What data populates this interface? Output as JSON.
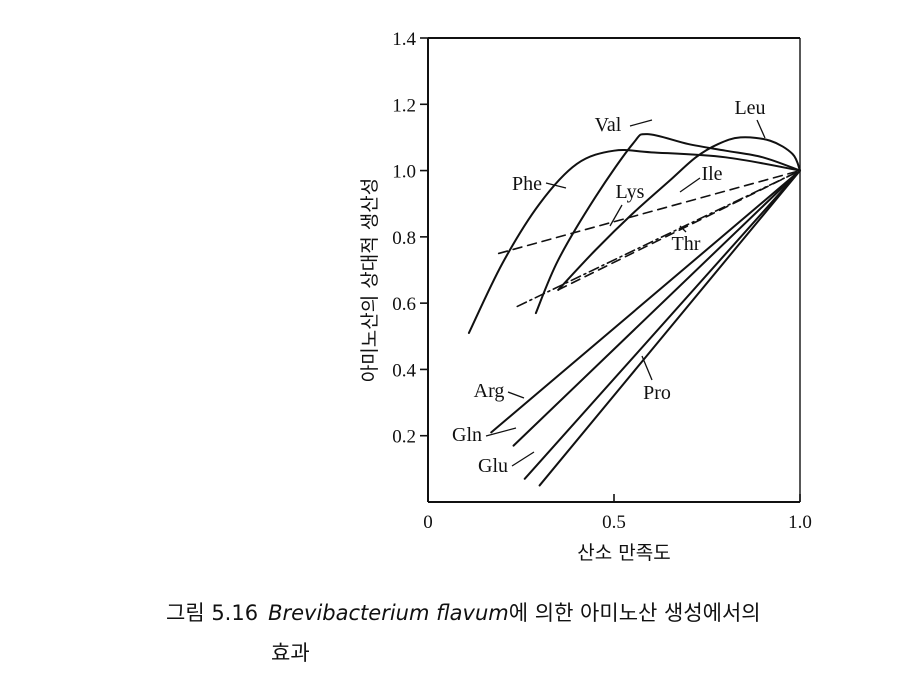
{
  "chart_data": {
    "type": "line",
    "title": "",
    "xlabel": "산소 만족도",
    "ylabel": "아미노산의 상대적 생산성",
    "xlim": [
      0,
      1.0
    ],
    "ylim": [
      0,
      1.4
    ],
    "xticks": [
      "0",
      "0.5",
      "1.0"
    ],
    "xtick_values": [
      0,
      0.5,
      1.0
    ],
    "yticks": [
      "0.2",
      "0.4",
      "0.6",
      "0.8",
      "1.0",
      "1.2",
      "1.4"
    ],
    "ytick_values": [
      0.2,
      0.4,
      0.6,
      0.8,
      1.0,
      1.2,
      1.4
    ],
    "grid": false,
    "legend": "none (series labelled directly on curves)",
    "series": [
      {
        "name": "Phe",
        "style": "solid",
        "x": [
          0.11,
          0.2,
          0.3,
          0.4,
          0.5,
          0.6,
          0.8,
          1.0
        ],
        "y": [
          0.51,
          0.72,
          0.9,
          1.02,
          1.06,
          1.055,
          1.04,
          1.0
        ]
      },
      {
        "name": "Val",
        "style": "solid",
        "x": [
          0.29,
          0.35,
          0.45,
          0.55,
          0.59,
          0.7,
          0.8,
          0.9,
          1.0
        ],
        "y": [
          0.57,
          0.73,
          0.92,
          1.08,
          1.11,
          1.08,
          1.06,
          1.04,
          1.0
        ]
      },
      {
        "name": "Leu",
        "style": "solid",
        "x": [
          0.35,
          0.45,
          0.55,
          0.65,
          0.72,
          0.78,
          0.84,
          0.92,
          0.98,
          1.0
        ],
        "y": [
          0.64,
          0.76,
          0.87,
          0.97,
          1.04,
          1.08,
          1.1,
          1.09,
          1.05,
          1.0
        ]
      },
      {
        "name": "Ile",
        "style": "dashed",
        "x": [
          0.35,
          1.0
        ],
        "y": [
          0.64,
          1.0
        ]
      },
      {
        "name": "Lys",
        "style": "dashed",
        "x": [
          0.19,
          1.0
        ],
        "y": [
          0.75,
          1.0
        ]
      },
      {
        "name": "Thr",
        "style": "dash-dot",
        "x": [
          0.24,
          1.0
        ],
        "y": [
          0.59,
          1.0
        ]
      },
      {
        "name": "Arg",
        "style": "solid",
        "x": [
          0.17,
          1.0
        ],
        "y": [
          0.21,
          1.0
        ]
      },
      {
        "name": "Gln",
        "style": "solid",
        "x": [
          0.23,
          1.0
        ],
        "y": [
          0.17,
          1.0
        ]
      },
      {
        "name": "Glu",
        "style": "solid",
        "x": [
          0.26,
          1.0
        ],
        "y": [
          0.07,
          1.0
        ]
      },
      {
        "name": "Pro",
        "style": "solid",
        "x": [
          0.3,
          1.0
        ],
        "y": [
          0.05,
          1.0
        ]
      }
    ]
  },
  "caption": {
    "figure_number": "그림 5.16",
    "organism": "Brevibacterium flavum",
    "text_after_organism": "에 의한 아미노산 생성에서의",
    "text_line2": "효과"
  }
}
